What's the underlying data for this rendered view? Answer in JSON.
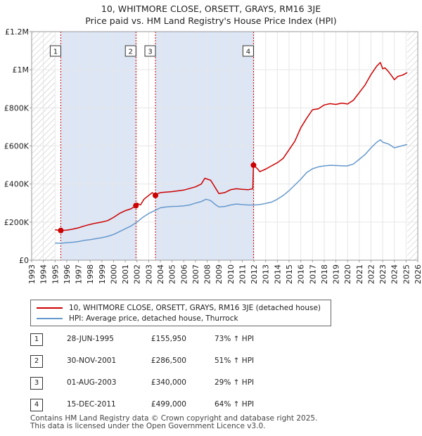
{
  "chart_data": {
    "type": "line",
    "title": "10, WHITMORE CLOSE, ORSETT, GRAYS, RM16 3JE",
    "subtitle": "Price paid vs. HM Land Registry's House Price Index (HPI)",
    "xlim": [
      1993,
      2026
    ],
    "ylim": [
      0,
      1200000
    ],
    "x_ticks": [
      1993,
      1994,
      1995,
      1996,
      1997,
      1998,
      1999,
      2000,
      2001,
      2002,
      2003,
      2004,
      2005,
      2006,
      2007,
      2008,
      2009,
      2010,
      2011,
      2012,
      2013,
      2014,
      2015,
      2016,
      2017,
      2018,
      2019,
      2020,
      2021,
      2022,
      2023,
      2024,
      2025,
      2026
    ],
    "y_ticks": [
      {
        "value": 0,
        "label": "£0"
      },
      {
        "value": 200000,
        "label": "£200K"
      },
      {
        "value": 400000,
        "label": "£400K"
      },
      {
        "value": 600000,
        "label": "£600K"
      },
      {
        "value": 800000,
        "label": "£800K"
      },
      {
        "value": 1000000,
        "label": "£1M"
      },
      {
        "value": 1200000,
        "label": "£1.2M"
      }
    ],
    "data_start": 1995.0,
    "data_end": 2025.1,
    "series": [
      {
        "name": "10, WHITMORE CLOSE, ORSETT, GRAYS, RM16 3JE (detached house)",
        "color": "#cc0000",
        "points": [
          [
            1995.0,
            160000
          ],
          [
            1995.49,
            155950
          ],
          [
            1996.0,
            158000
          ],
          [
            1996.5,
            163000
          ],
          [
            1997.0,
            170000
          ],
          [
            1997.5,
            180000
          ],
          [
            1998.0,
            188000
          ],
          [
            1998.5,
            195000
          ],
          [
            1999.0,
            200000
          ],
          [
            1999.5,
            208000
          ],
          [
            2000.0,
            225000
          ],
          [
            2000.5,
            245000
          ],
          [
            2001.0,
            260000
          ],
          [
            2001.5,
            270000
          ],
          [
            2001.91,
            286500
          ],
          [
            2002.0,
            300000
          ],
          [
            2002.3,
            290000
          ],
          [
            2002.6,
            320000
          ],
          [
            2003.0,
            340000
          ],
          [
            2003.3,
            355000
          ],
          [
            2003.58,
            340000
          ],
          [
            2003.8,
            350000
          ],
          [
            2004.0,
            355000
          ],
          [
            2005.0,
            360000
          ],
          [
            2006.0,
            368000
          ],
          [
            2007.0,
            385000
          ],
          [
            2007.5,
            400000
          ],
          [
            2007.8,
            430000
          ],
          [
            2008.3,
            420000
          ],
          [
            2008.6,
            390000
          ],
          [
            2009.0,
            350000
          ],
          [
            2009.5,
            355000
          ],
          [
            2010.0,
            370000
          ],
          [
            2010.5,
            375000
          ],
          [
            2011.0,
            372000
          ],
          [
            2011.5,
            370000
          ],
          [
            2011.9,
            375000
          ],
          [
            2011.96,
            499000
          ],
          [
            2012.3,
            480000
          ],
          [
            2012.5,
            465000
          ],
          [
            2013.0,
            478000
          ],
          [
            2013.5,
            495000
          ],
          [
            2014.0,
            512000
          ],
          [
            2014.5,
            535000
          ],
          [
            2015.0,
            580000
          ],
          [
            2015.5,
            625000
          ],
          [
            2016.0,
            695000
          ],
          [
            2016.5,
            745000
          ],
          [
            2017.0,
            790000
          ],
          [
            2017.5,
            795000
          ],
          [
            2018.0,
            815000
          ],
          [
            2018.5,
            822000
          ],
          [
            2019.0,
            818000
          ],
          [
            2019.5,
            825000
          ],
          [
            2020.0,
            820000
          ],
          [
            2020.5,
            840000
          ],
          [
            2021.0,
            880000
          ],
          [
            2021.5,
            920000
          ],
          [
            2022.0,
            975000
          ],
          [
            2022.5,
            1020000
          ],
          [
            2022.8,
            1038000
          ],
          [
            2023.0,
            1005000
          ],
          [
            2023.2,
            1010000
          ],
          [
            2023.5,
            990000
          ],
          [
            2023.8,
            965000
          ],
          [
            2024.0,
            948000
          ],
          [
            2024.3,
            965000
          ],
          [
            2024.7,
            972000
          ],
          [
            2025.1,
            985000
          ]
        ]
      },
      {
        "name": "HPI: Average price, detached house, Thurrock",
        "color": "#6699cc",
        "points": [
          [
            1995.0,
            90000
          ],
          [
            1995.5,
            89000
          ],
          [
            1996.0,
            92000
          ],
          [
            1996.5,
            94000
          ],
          [
            1997.0,
            98000
          ],
          [
            1997.5,
            104000
          ],
          [
            1998.0,
            108000
          ],
          [
            1998.5,
            113000
          ],
          [
            1999.0,
            118000
          ],
          [
            1999.5,
            125000
          ],
          [
            2000.0,
            135000
          ],
          [
            2000.5,
            150000
          ],
          [
            2001.0,
            165000
          ],
          [
            2001.5,
            180000
          ],
          [
            2002.0,
            200000
          ],
          [
            2002.5,
            225000
          ],
          [
            2003.0,
            245000
          ],
          [
            2003.5,
            260000
          ],
          [
            2004.0,
            275000
          ],
          [
            2004.5,
            280000
          ],
          [
            2005.0,
            282000
          ],
          [
            2005.5,
            283000
          ],
          [
            2006.0,
            285000
          ],
          [
            2006.5,
            290000
          ],
          [
            2007.0,
            300000
          ],
          [
            2007.5,
            308000
          ],
          [
            2007.9,
            320000
          ],
          [
            2008.3,
            313000
          ],
          [
            2008.7,
            292000
          ],
          [
            2009.0,
            280000
          ],
          [
            2009.5,
            282000
          ],
          [
            2010.0,
            290000
          ],
          [
            2010.5,
            295000
          ],
          [
            2011.0,
            292000
          ],
          [
            2011.5,
            290000
          ],
          [
            2012.0,
            290000
          ],
          [
            2012.5,
            292000
          ],
          [
            2013.0,
            298000
          ],
          [
            2013.5,
            305000
          ],
          [
            2014.0,
            320000
          ],
          [
            2014.5,
            340000
          ],
          [
            2015.0,
            365000
          ],
          [
            2015.5,
            395000
          ],
          [
            2016.0,
            425000
          ],
          [
            2016.5,
            460000
          ],
          [
            2017.0,
            480000
          ],
          [
            2017.5,
            490000
          ],
          [
            2018.0,
            495000
          ],
          [
            2018.5,
            498000
          ],
          [
            2019.0,
            497000
          ],
          [
            2019.5,
            496000
          ],
          [
            2020.0,
            495000
          ],
          [
            2020.5,
            505000
          ],
          [
            2021.0,
            530000
          ],
          [
            2021.5,
            555000
          ],
          [
            2022.0,
            590000
          ],
          [
            2022.5,
            620000
          ],
          [
            2022.8,
            632000
          ],
          [
            2023.0,
            620000
          ],
          [
            2023.5,
            610000
          ],
          [
            2024.0,
            590000
          ],
          [
            2024.5,
            598000
          ],
          [
            2025.1,
            608000
          ]
        ]
      }
    ],
    "sales": [
      {
        "label": "1",
        "date": "28-JUN-1995",
        "x": 1995.49,
        "price": "£155,950",
        "value": 155950,
        "hpi": "73% ↑ HPI"
      },
      {
        "label": "2",
        "date": "30-NOV-2001",
        "x": 2001.91,
        "price": "£286,500",
        "value": 286500,
        "hpi": "51% ↑ HPI"
      },
      {
        "label": "3",
        "date": "01-AUG-2003",
        "x": 2003.58,
        "price": "£340,000",
        "value": 340000,
        "hpi": "29% ↑ HPI"
      },
      {
        "label": "4",
        "date": "15-DEC-2011",
        "x": 2011.96,
        "price": "£499,000",
        "value": 499000,
        "hpi": "64% ↑ HPI"
      }
    ]
  },
  "legend": {
    "property_label": "10, WHITMORE CLOSE, ORSETT, GRAYS, RM16 3JE (detached house)",
    "hpi_label": "HPI: Average price, detached house, Thurrock"
  },
  "footer": {
    "line1": "Contains HM Land Registry data © Crown copyright and database right 2025.",
    "line2": "This data is licensed under the Open Government Licence v3.0."
  },
  "colors": {
    "property": "#cc0000",
    "hpi": "#6699cc",
    "shade": "#dde6f5",
    "hatch": "#bbbbbb"
  }
}
